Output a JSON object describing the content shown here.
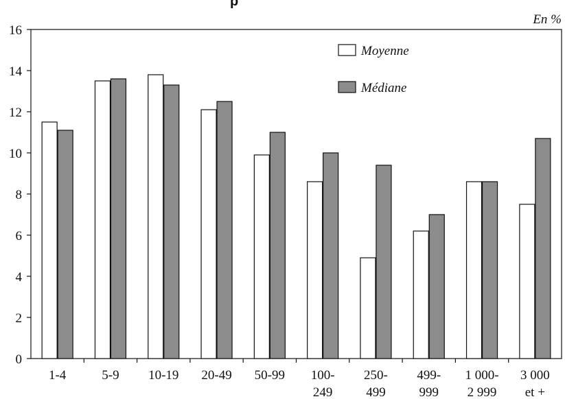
{
  "chart_data": {
    "type": "bar",
    "title": "p",
    "unit_label": "En %",
    "categories": [
      [
        "1-4"
      ],
      [
        "5-9"
      ],
      [
        "10-19"
      ],
      [
        "20-49"
      ],
      [
        "50-99"
      ],
      [
        "100-",
        "249"
      ],
      [
        "250-",
        "499"
      ],
      [
        "499-",
        "999"
      ],
      [
        "1 000-",
        "2 999"
      ],
      [
        "3 000",
        "et +"
      ]
    ],
    "series": [
      {
        "name": "Moyenne",
        "color": "#ffffff",
        "values": [
          11.5,
          13.5,
          13.8,
          12.1,
          9.9,
          8.6,
          4.9,
          6.2,
          8.6,
          7.5
        ]
      },
      {
        "name": "Médiane",
        "color": "#8c8c8c",
        "values": [
          11.1,
          13.6,
          13.3,
          12.5,
          11.0,
          10.0,
          9.4,
          7.0,
          8.6,
          10.7
        ]
      }
    ],
    "ylim": [
      0,
      16
    ],
    "yticks": [
      0,
      2,
      4,
      6,
      8,
      10,
      12,
      14,
      16
    ],
    "legend_position": "top-right",
    "grid": false
  }
}
